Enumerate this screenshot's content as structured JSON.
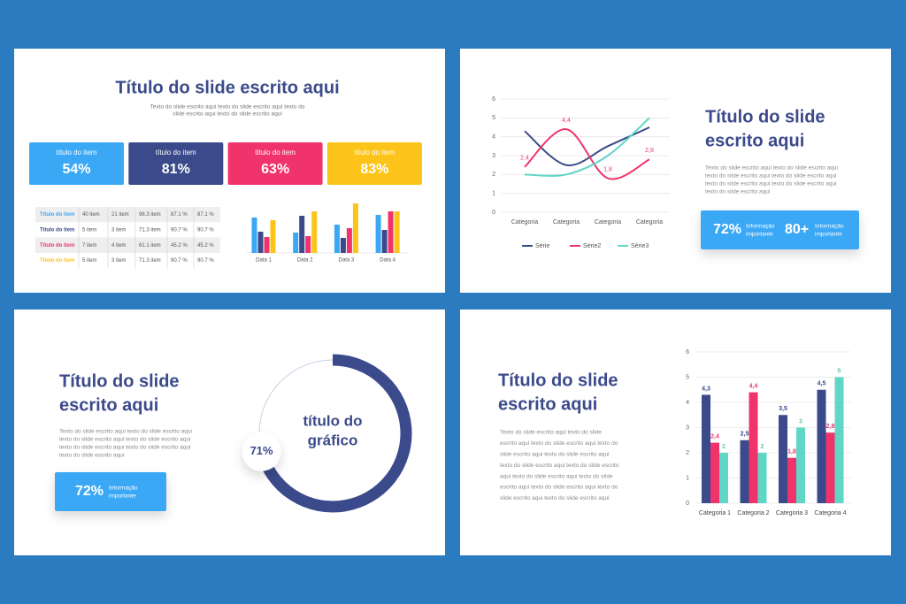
{
  "slides": [
    {
      "title": "Título do slide escrito aqui",
      "text": [
        "Texto do slide escrito aqui texto do slide escrito aqui texto do",
        "slide escrito aqui texto do slide escrito aqui"
      ],
      "cards": [
        {
          "label": "título do item",
          "value": "54%",
          "color": "#3aa8f5"
        },
        {
          "label": "título do item",
          "value": "81%",
          "color": "#3b4a8a"
        },
        {
          "label": "título do item",
          "value": "63%",
          "color": "#f0346b"
        },
        {
          "label": "título do item",
          "value": "83%",
          "color": "#fcc419"
        }
      ],
      "table": {
        "row_colors": [
          "#3aa8f5",
          "#3b4a8a",
          "#f0346b",
          "#fcc419"
        ],
        "rows": [
          [
            "Título do item",
            "40 item",
            "21 item",
            "98.3 item",
            "87.1 %",
            "87.1 %"
          ],
          [
            "Título do item",
            "5 item",
            "3 item",
            "71.3 item",
            "90.7 %",
            "90.7 %"
          ],
          [
            "Título do item",
            "7 item",
            "4 item",
            "61.1 item",
            "45.2 %",
            "45.2 %"
          ],
          [
            "Título do item",
            "5 item",
            "3 item",
            "71.3 item",
            "90.7 %",
            "90.7 %"
          ]
        ]
      }
    },
    {
      "title": [
        "Título do slide",
        "escrito aqui"
      ],
      "text": [
        "Texto do slide escrito aqui texto do slide escrito aqui",
        "texto do slide escrito aqui texto do slide escrito aqui",
        "texto do slide escrito aqui texto do slide escrito aqui",
        "texto do slide escrito aqui"
      ],
      "stats": [
        {
          "value": "72%",
          "label": [
            "Informação",
            "importante"
          ]
        },
        {
          "value": "80+",
          "label": [
            "Informação",
            "importante"
          ]
        }
      ]
    },
    {
      "title": [
        "Título do slide",
        "escrito aqui"
      ],
      "text": [
        "Texto do slide escrito aqui texto do slide escrito aqui",
        "texto do slide escrito aqui texto do slide escrito aqui",
        "texto do slide escrito aqui texto do slide escrito aqui",
        "texto do slide escrito aqui"
      ],
      "stats": [
        {
          "value": "72%",
          "label": [
            "Informação",
            "importante"
          ]
        }
      ]
    },
    {
      "title": [
        "Título do slide",
        "escrito aqui"
      ],
      "text": [
        "Texto do slide escrito aqui texto do slide",
        "escrito aqui texto do slide escrito aqui texto do",
        "slide escrito aqui texto do slide escrito aqui",
        "texto do slide escrito aqui texto do slide escrito",
        "aqui texto do slide escrito aqui texto do slide",
        "escrito aqui texto do slide escrito aqui texto do",
        "slide escrito aqui texto do slide escrito aqui"
      ]
    }
  ],
  "chart_data": [
    {
      "type": "bar",
      "categories": [
        "Data 1",
        "Data 2",
        "Data 3",
        "Data 4"
      ],
      "ylim": [
        0,
        60
      ],
      "series": [
        {
          "color": "#3aa8f5",
          "values": [
            40,
            23,
            32,
            43
          ]
        },
        {
          "color": "#3b4a8a",
          "values": [
            24,
            42,
            17,
            26
          ]
        },
        {
          "color": "#f0346b",
          "values": [
            18,
            19,
            28,
            47
          ]
        },
        {
          "color": "#fcc419",
          "values": [
            37,
            47,
            56,
            47
          ]
        }
      ]
    },
    {
      "type": "line",
      "categories": [
        "Categoria",
        "Categoria",
        "Categoria",
        "Categoria"
      ],
      "ylim": [
        0,
        6
      ],
      "yticks": [
        0,
        1,
        2,
        3,
        4,
        5,
        6
      ],
      "grid": true,
      "series": [
        {
          "name": "Série",
          "color": "#3b4a8a",
          "values": [
            4.3,
            2.5,
            3.5,
            4.5
          ]
        },
        {
          "name": "Série2",
          "color": "#f0346b",
          "values": [
            2.4,
            4.4,
            1.8,
            2.8
          ],
          "value_labels": [
            "2,4",
            "4,4",
            "1,8",
            "2,8"
          ]
        },
        {
          "name": "Série3",
          "color": "#5fd6c6",
          "values": [
            2,
            2,
            3,
            5
          ]
        }
      ]
    },
    {
      "type": "donut",
      "title": [
        "título do",
        "gráfico"
      ],
      "values": [
        71
      ],
      "value_labels": [
        "71%"
      ],
      "color": "#3b4a8a"
    },
    {
      "type": "bar",
      "categories": [
        "Categoria 1",
        "Categoria 2",
        "Categoria 3",
        "Categoria 4"
      ],
      "ylim": [
        0,
        6
      ],
      "yticks": [
        0,
        1,
        2,
        3,
        4,
        5,
        6
      ],
      "grid": true,
      "series": [
        {
          "color": "#3b4a8a",
          "values": [
            4.3,
            2.5,
            3.5,
            4.5
          ],
          "value_labels": [
            "4,3",
            "2,5",
            "3,5",
            "4,5"
          ]
        },
        {
          "color": "#f0346b",
          "values": [
            2.4,
            4.4,
            1.8,
            2.8
          ],
          "value_labels": [
            "2,4",
            "4,4",
            "1,8",
            "2,8"
          ]
        },
        {
          "color": "#5fd6c6",
          "values": [
            2,
            2,
            3,
            5
          ],
          "value_labels": [
            "2",
            "2",
            "3",
            "5"
          ]
        }
      ]
    }
  ]
}
